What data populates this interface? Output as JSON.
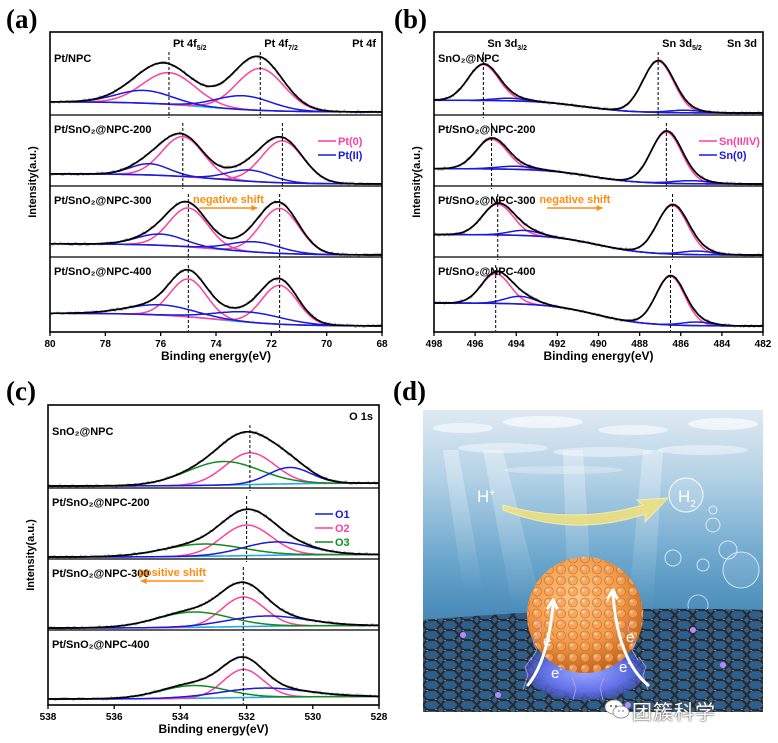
{
  "panels": [
    {
      "letter": "(a)"
    },
    {
      "letter": "(b)"
    },
    {
      "letter": "(c)"
    },
    {
      "letter": "(d)"
    }
  ],
  "colors": {
    "raw": "#b5b5b5",
    "envelope": "#000000",
    "background": "#29a8e8",
    "pink": "#ff3fa0",
    "blue": "#1a1adc",
    "green": "#158a1e",
    "shift_arrow": "#ff8c10"
  },
  "chart_data": [
    {
      "id": "a",
      "type": "line",
      "title": "Pt 4f",
      "xlabel": "Binding energy(eV)",
      "ylabel": "Intensity(a.u.)",
      "xlim": [
        80,
        68
      ],
      "xticks": [
        "80",
        "78",
        "76",
        "74",
        "72",
        "70",
        "68"
      ],
      "legend": {
        "placement": "right-upper-second-stack",
        "entries": [
          {
            "label": "Pt(0)",
            "color": "pink"
          },
          {
            "label": "Pt(II)",
            "color": "blue"
          }
        ]
      },
      "peak_labels": [
        {
          "text": "Pt 4f",
          "sub": "5/2",
          "x": 75.7
        },
        {
          "text": "Pt 4f",
          "sub": "7/2",
          "x": 72.4
        }
      ],
      "annotation": {
        "text": "negative shift",
        "direction": "right",
        "stack": 2,
        "x_from": 74.6,
        "x_to": 72.5
      },
      "series": [
        {
          "name": "Pt/NPC",
          "dashed_at": [
            75.7,
            72.4
          ],
          "bg": [
            0.22,
            0.02
          ],
          "components": [
            {
              "role": "Pt(0)",
              "color": "pink",
              "center": 75.7,
              "amp": 0.62,
              "sigma": 0.95
            },
            {
              "role": "Pt(0)",
              "color": "pink",
              "center": 72.4,
              "amp": 0.82,
              "sigma": 0.85
            },
            {
              "role": "Pt(II)",
              "color": "blue",
              "center": 76.6,
              "amp": 0.25,
              "sigma": 1.0
            },
            {
              "role": "Pt(II)",
              "color": "blue",
              "center": 73.0,
              "amp": 0.27,
              "sigma": 1.0
            }
          ]
        },
        {
          "name": "Pt/SnO₂@NPC-200",
          "dashed_at": [
            75.2,
            71.6
          ],
          "bg": [
            0.2,
            0.0
          ],
          "components": [
            {
              "role": "Pt(0)",
              "color": "pink",
              "center": 75.2,
              "amp": 0.78,
              "sigma": 0.75
            },
            {
              "role": "Pt(0)",
              "color": "pink",
              "center": 71.6,
              "amp": 0.82,
              "sigma": 0.75
            },
            {
              "role": "Pt(II)",
              "color": "blue",
              "center": 76.4,
              "amp": 0.22,
              "sigma": 0.7
            },
            {
              "role": "Pt(II)",
              "color": "blue",
              "center": 72.8,
              "amp": 0.22,
              "sigma": 0.8
            }
          ]
        },
        {
          "name": "Pt/SnO₂@NPC-300",
          "dashed_at": [
            75.0,
            71.7
          ],
          "bg": [
            0.22,
            0.0
          ],
          "components": [
            {
              "role": "Pt(0)",
              "color": "pink",
              "center": 75.0,
              "amp": 0.76,
              "sigma": 0.7
            },
            {
              "role": "Pt(0)",
              "color": "pink",
              "center": 71.7,
              "amp": 0.88,
              "sigma": 0.7
            },
            {
              "role": "Pt(II)",
              "color": "blue",
              "center": 76.0,
              "amp": 0.22,
              "sigma": 0.85
            },
            {
              "role": "Pt(II)",
              "color": "blue",
              "center": 72.6,
              "amp": 0.2,
              "sigma": 0.9
            }
          ]
        },
        {
          "name": "Pt/SnO₂@NPC-400",
          "dashed_at": [
            75.0,
            71.7
          ],
          "bg": [
            0.25,
            0.0
          ],
          "components": [
            {
              "role": "Pt(0)",
              "color": "pink",
              "center": 75.0,
              "amp": 0.74,
              "sigma": 0.65
            },
            {
              "role": "Pt(0)",
              "color": "pink",
              "center": 71.7,
              "amp": 0.76,
              "sigma": 0.65
            },
            {
              "role": "Pt(II)",
              "color": "blue",
              "center": 76.0,
              "amp": 0.2,
              "sigma": 1.2
            },
            {
              "role": "Pt(II)",
              "color": "blue",
              "center": 72.8,
              "amp": 0.2,
              "sigma": 1.2
            }
          ]
        }
      ]
    },
    {
      "id": "b",
      "type": "line",
      "title": "Sn 3d",
      "xlabel": "Binding energy(eV)",
      "ylabel": "Intensity(a.u.)",
      "xlim": [
        498,
        482
      ],
      "xticks": [
        "498",
        "496",
        "494",
        "492",
        "490",
        "488",
        "486",
        "484",
        "482"
      ],
      "legend": {
        "placement": "right-upper-second-stack",
        "entries": [
          {
            "label": "Sn(II/IV)",
            "color": "pink"
          },
          {
            "label": "Sn(0)",
            "color": "blue"
          }
        ]
      },
      "peak_labels": [
        {
          "text": "Sn 3d",
          "sub": "3/2",
          "x": 495.6
        },
        {
          "text": "Sn 3d",
          "sub": "5/2",
          "x": 487.1
        }
      ],
      "annotation": {
        "text": "negative shift",
        "direction": "right",
        "stack": 2,
        "x_from": 492.5,
        "x_to": 489.8
      },
      "series": [
        {
          "name": "SnO₂@NPC",
          "dashed_at": [
            495.6,
            487.1
          ],
          "bg": [
            0.25,
            0.0
          ],
          "components": [
            {
              "role": "Sn(II/IV)",
              "color": "pink",
              "center": 495.6,
              "amp": 0.7,
              "sigma": 0.75
            },
            {
              "role": "Sn(II/IV)",
              "color": "pink",
              "center": 487.1,
              "amp": 1.0,
              "sigma": 0.75
            },
            {
              "role": "Sn(0)",
              "color": "blue",
              "center": 494.3,
              "amp": 0.05,
              "sigma": 0.8
            },
            {
              "role": "Sn(0)",
              "color": "blue",
              "center": 485.8,
              "amp": 0.05,
              "sigma": 0.8
            }
          ]
        },
        {
          "name": "Pt/SnO₂@NPC-200",
          "dashed_at": [
            495.2,
            486.7
          ],
          "bg": [
            0.3,
            0.0
          ],
          "components": [
            {
              "role": "Sn(II/IV)",
              "color": "pink",
              "center": 495.2,
              "amp": 0.58,
              "sigma": 0.75
            },
            {
              "role": "Sn(II/IV)",
              "color": "pink",
              "center": 486.7,
              "amp": 1.0,
              "sigma": 0.75
            },
            {
              "role": "Sn(0)",
              "color": "blue",
              "center": 494.0,
              "amp": 0.06,
              "sigma": 0.9
            },
            {
              "role": "Sn(0)",
              "color": "blue",
              "center": 485.5,
              "amp": 0.06,
              "sigma": 0.9
            }
          ]
        },
        {
          "name": "Pt/SnO₂@NPC-300",
          "dashed_at": [
            494.9,
            486.4
          ],
          "bg": [
            0.4,
            0.0
          ],
          "components": [
            {
              "role": "Sn(II/IV)",
              "color": "pink",
              "center": 494.9,
              "amp": 0.6,
              "sigma": 0.75
            },
            {
              "role": "Sn(II/IV)",
              "color": "pink",
              "center": 486.4,
              "amp": 0.95,
              "sigma": 0.75
            },
            {
              "role": "Sn(0)",
              "color": "blue",
              "center": 493.6,
              "amp": 0.1,
              "sigma": 0.75
            },
            {
              "role": "Sn(0)",
              "color": "blue",
              "center": 485.2,
              "amp": 0.07,
              "sigma": 0.75
            }
          ]
        },
        {
          "name": "Pt/SnO₂@NPC-400",
          "dashed_at": [
            495.0,
            486.5
          ],
          "bg": [
            0.45,
            0.0
          ],
          "components": [
            {
              "role": "Sn(II/IV)",
              "color": "pink",
              "center": 495.0,
              "amp": 0.58,
              "sigma": 0.7
            },
            {
              "role": "Sn(II/IV)",
              "color": "pink",
              "center": 486.5,
              "amp": 0.95,
              "sigma": 0.7
            },
            {
              "role": "Sn(0)",
              "color": "blue",
              "center": 493.8,
              "amp": 0.15,
              "sigma": 0.75
            },
            {
              "role": "Sn(0)",
              "color": "blue",
              "center": 485.2,
              "amp": 0.07,
              "sigma": 0.75
            }
          ]
        }
      ]
    },
    {
      "id": "c",
      "type": "line",
      "title": "O 1s",
      "xlabel": "Binding energy(eV)",
      "ylabel": "Intensity(a.u.)",
      "xlim": [
        538,
        528
      ],
      "xticks": [
        "538",
        "536",
        "534",
        "532",
        "530",
        "528"
      ],
      "legend": {
        "placement": "right-upper-second-stack",
        "entries": [
          {
            "label": "O1",
            "color": "blue"
          },
          {
            "label": "O2",
            "color": "pink"
          },
          {
            "label": "O3",
            "color": "green"
          }
        ]
      },
      "peak_labels": [],
      "annotation": {
        "text": "positive shift",
        "direction": "left",
        "stack": 2,
        "x_from": 533.3,
        "x_to": 535.2
      },
      "series": [
        {
          "name": "SnO₂@NPC",
          "dashed_at": [
            531.9
          ],
          "bg": [
            0.0,
            0.06
          ],
          "components": [
            {
              "role": "O2",
              "color": "pink",
              "center": 531.9,
              "amp": 0.62,
              "sigma": 0.75
            },
            {
              "role": "O3",
              "color": "green",
              "center": 532.7,
              "amp": 0.46,
              "sigma": 1.1
            },
            {
              "role": "O1",
              "color": "blue",
              "center": 530.7,
              "amp": 0.32,
              "sigma": 0.65
            }
          ]
        },
        {
          "name": "Pt/SnO₂@NPC-200",
          "dashed_at": [
            532.0
          ],
          "bg": [
            0.0,
            0.05
          ],
          "components": [
            {
              "role": "O2",
              "color": "pink",
              "center": 532.0,
              "amp": 0.6,
              "sigma": 0.75
            },
            {
              "role": "O3",
              "color": "green",
              "center": 533.3,
              "amp": 0.24,
              "sigma": 1.2
            },
            {
              "role": "O1",
              "color": "blue",
              "center": 531.1,
              "amp": 0.26,
              "sigma": 1.0
            }
          ]
        },
        {
          "name": "Pt/SnO₂@NPC-300",
          "dashed_at": [
            532.1
          ],
          "bg": [
            0.0,
            0.05
          ],
          "components": [
            {
              "role": "O2",
              "color": "pink",
              "center": 532.1,
              "amp": 0.58,
              "sigma": 0.65
            },
            {
              "role": "O3",
              "color": "green",
              "center": 533.6,
              "amp": 0.3,
              "sigma": 1.1
            },
            {
              "role": "O1",
              "color": "blue",
              "center": 531.4,
              "amp": 0.2,
              "sigma": 1.2
            }
          ]
        },
        {
          "name": "Pt/SnO₂@NPC-400",
          "dashed_at": [
            532.1
          ],
          "bg": [
            0.0,
            0.05
          ],
          "components": [
            {
              "role": "O2",
              "color": "pink",
              "center": 532.1,
              "amp": 0.55,
              "sigma": 0.6
            },
            {
              "role": "O3",
              "color": "green",
              "center": 533.6,
              "amp": 0.25,
              "sigma": 1.0
            },
            {
              "role": "O1",
              "color": "blue",
              "center": 531.5,
              "amp": 0.18,
              "sigma": 1.3
            }
          ]
        }
      ]
    }
  ],
  "illustration": {
    "h_plus_label": "H",
    "h_plus_sup": "+",
    "h2_label": "H",
    "h2_sub": "2",
    "electron_label": "e",
    "electron_sup": "-",
    "watermark": "团簇科学"
  }
}
